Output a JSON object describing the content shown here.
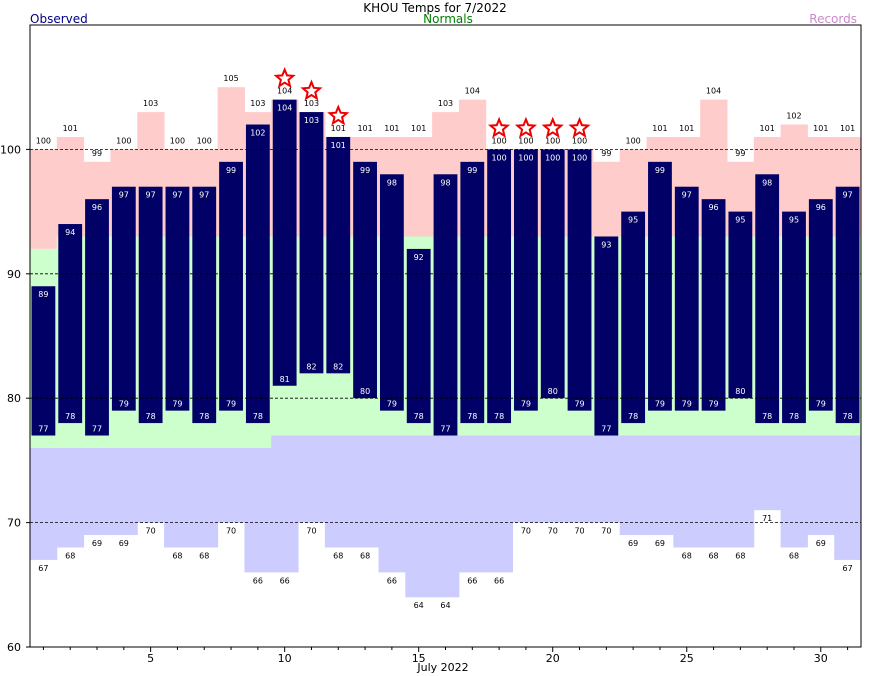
{
  "title": "KHOU Temps for 7/2022",
  "legend": {
    "observed": "Observed",
    "normals": "Normals",
    "records": "Records"
  },
  "colors": {
    "observed_bar": "#000066",
    "normal_band": "#ccffcc",
    "record_high": "#ffcccc",
    "record_low": "#ccccff",
    "star": "#ee0000",
    "observed_text": "#000080",
    "normals_text": "#008000",
    "records_text": "#cc88cc"
  },
  "chart_data": {
    "type": "bar",
    "xlabel": "July 2022",
    "ylabel": "",
    "ylim": [
      60,
      110
    ],
    "yticks": [
      60,
      70,
      80,
      90,
      100
    ],
    "xticks": [
      5,
      10,
      15,
      20,
      25,
      30
    ],
    "grid_lines": [
      70,
      80,
      90,
      100
    ],
    "days": [
      1,
      2,
      3,
      4,
      5,
      6,
      7,
      8,
      9,
      10,
      11,
      12,
      13,
      14,
      15,
      16,
      17,
      18,
      19,
      20,
      21,
      22,
      23,
      24,
      25,
      26,
      27,
      28,
      29,
      30,
      31
    ],
    "obs_high": [
      89,
      94,
      96,
      97,
      97,
      97,
      97,
      99,
      102,
      104,
      103,
      101,
      99,
      98,
      92,
      98,
      99,
      100,
      100,
      100,
      100,
      93,
      95,
      99,
      97,
      96,
      95,
      98,
      95,
      96,
      97
    ],
    "obs_low": [
      77,
      78,
      77,
      79,
      78,
      79,
      78,
      79,
      78,
      81,
      82,
      82,
      80,
      79,
      78,
      77,
      78,
      78,
      79,
      80,
      79,
      77,
      78,
      79,
      79,
      79,
      80,
      78,
      78,
      79,
      78
    ],
    "normal_high": [
      92,
      93,
      93,
      93,
      93,
      93,
      93,
      93,
      93,
      93,
      93,
      93,
      93,
      93,
      93,
      93,
      93,
      93,
      93,
      93,
      93,
      93,
      93,
      93,
      93,
      93,
      93,
      93,
      93,
      93,
      93
    ],
    "normal_low": [
      76,
      76,
      76,
      76,
      76,
      76,
      76,
      76,
      76,
      77,
      77,
      77,
      77,
      77,
      77,
      77,
      77,
      77,
      77,
      77,
      77,
      77,
      77,
      77,
      77,
      77,
      77,
      77,
      77,
      77,
      77
    ],
    "record_high": [
      100,
      101,
      99,
      100,
      103,
      100,
      100,
      105,
      103,
      104,
      103,
      101,
      101,
      101,
      101,
      103,
      104,
      100,
      100,
      100,
      100,
      99,
      100,
      101,
      101,
      104,
      99,
      101,
      102,
      101,
      101
    ],
    "record_low": [
      67,
      68,
      69,
      69,
      70,
      68,
      68,
      70,
      66,
      66,
      70,
      68,
      68,
      66,
      64,
      64,
      66,
      66,
      70,
      70,
      70,
      70,
      69,
      69,
      68,
      68,
      68,
      71,
      68,
      69,
      67
    ],
    "record_set_days": [
      10,
      11,
      12,
      18,
      19,
      20,
      21
    ]
  }
}
